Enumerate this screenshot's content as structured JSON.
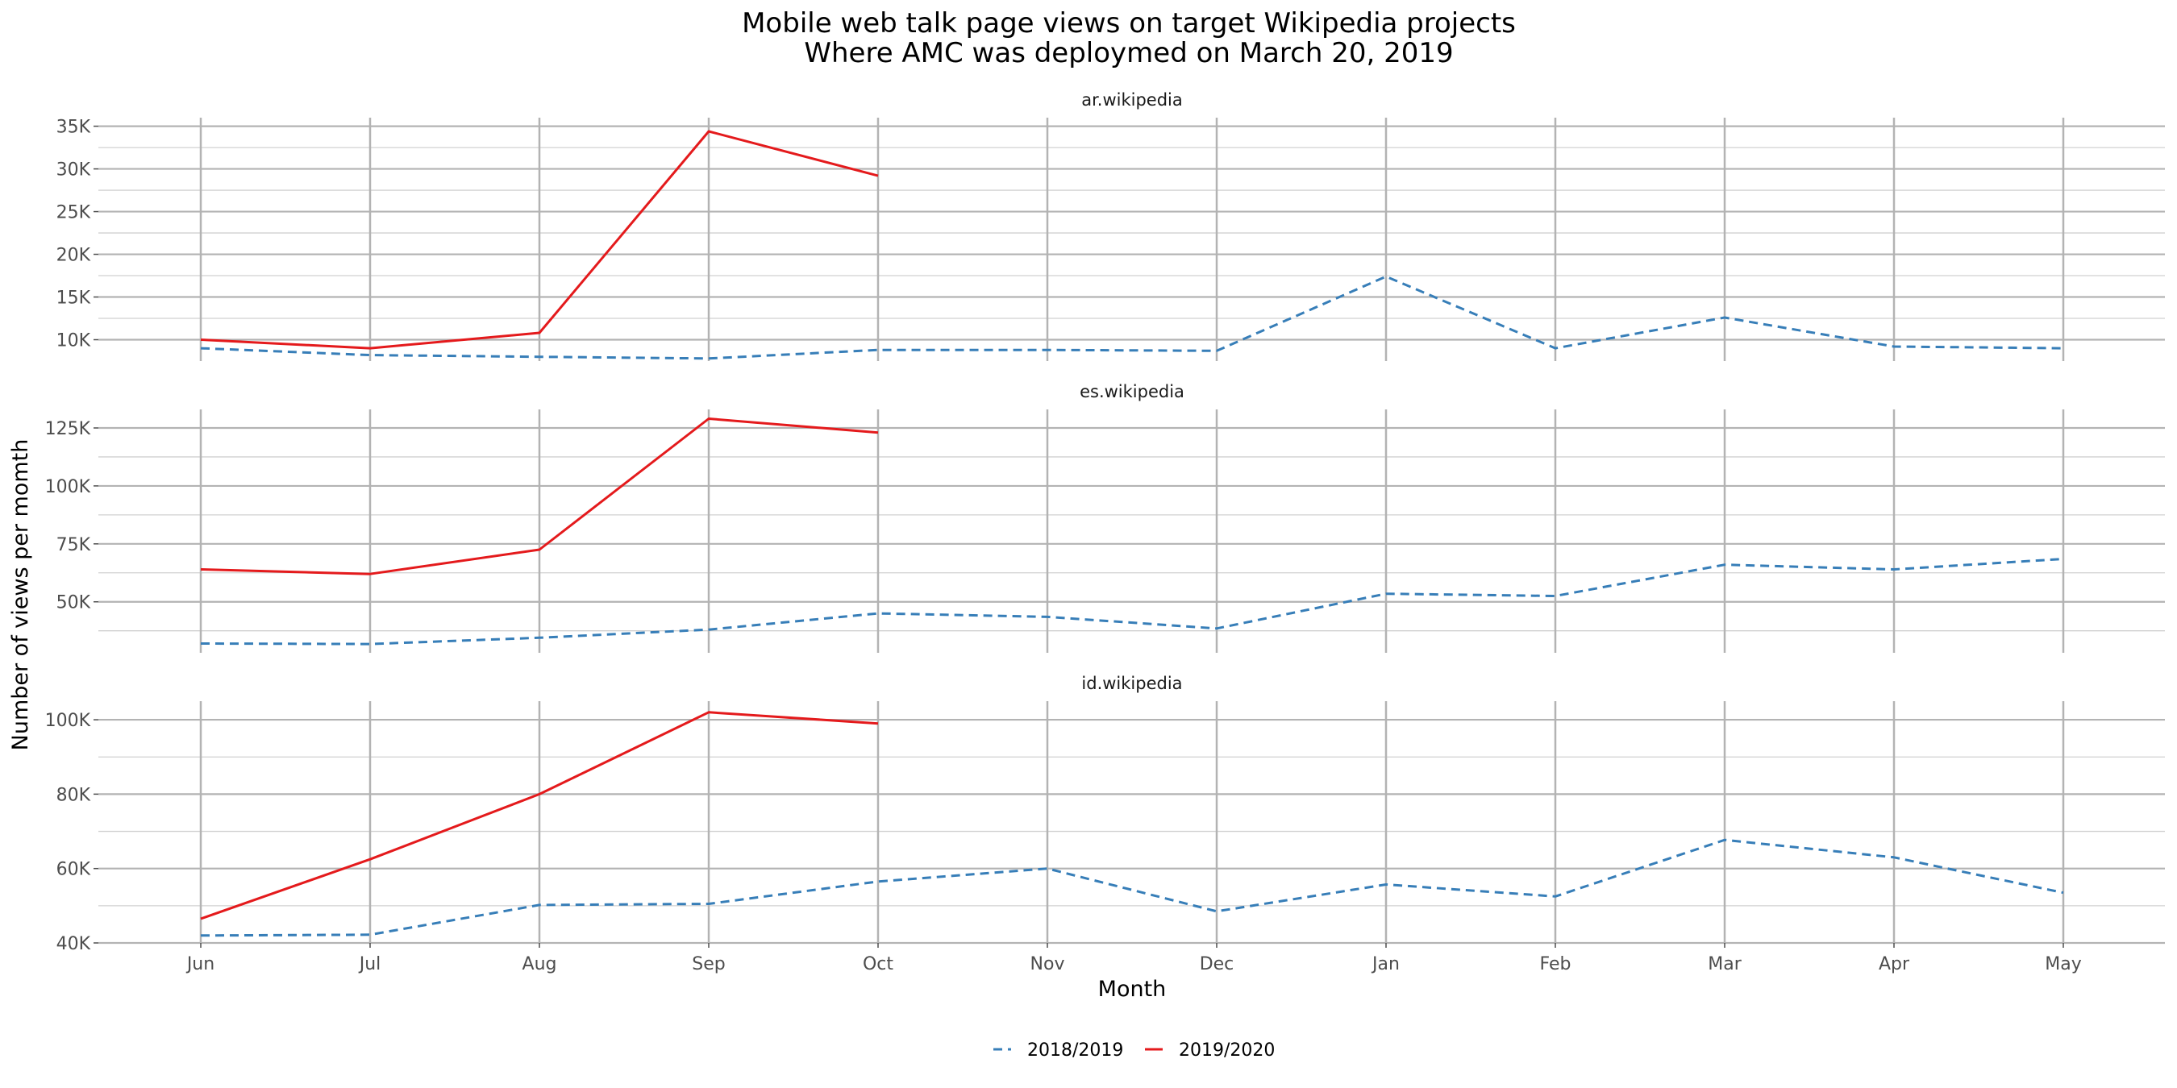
{
  "chart_data": {
    "type": "line",
    "title": "Mobile web talk page views on target Wikipedia projects",
    "subtitle": "Where AMC was deploymed on March 20, 2019",
    "xlabel": "Month",
    "ylabel": "Number of views per momth",
    "categories": [
      "Jun",
      "Jul",
      "Aug",
      "Sep",
      "Oct",
      "Nov",
      "Dec",
      "Jan",
      "Feb",
      "Mar",
      "Apr",
      "May"
    ],
    "legend_position": "bottom",
    "grid": true,
    "colors": {
      "2018/2019": "#377eb8",
      "2019/2020": "#e41a1c"
    },
    "legend": [
      "2018/2019",
      "2019/2020"
    ],
    "panels": [
      {
        "title": "ar.wikipedia",
        "ylim": [
          7500,
          36000
        ],
        "ticks": [
          10000,
          15000,
          20000,
          25000,
          30000,
          35000
        ],
        "tick_labels": [
          "10K",
          "15K",
          "20K",
          "25K",
          "30K",
          "35K"
        ],
        "series": [
          {
            "name": "2018/2019",
            "values": [
              9000,
              8200,
              8000,
              7800,
              8800,
              8800,
              8700,
              17400,
              9000,
              12600,
              9200,
              9000
            ]
          },
          {
            "name": "2019/2020",
            "values": [
              10000,
              9000,
              10800,
              34400,
              29200,
              null,
              null,
              null,
              null,
              null,
              null,
              null
            ]
          }
        ]
      },
      {
        "title": "es.wikipedia",
        "ylim": [
          28000,
          133000
        ],
        "ticks": [
          50000,
          75000,
          100000,
          125000
        ],
        "tick_labels": [
          "50K",
          "75K",
          "100K",
          "125K"
        ],
        "series": [
          {
            "name": "2018/2019",
            "values": [
              32000,
              31800,
              34500,
              38000,
              45000,
              43500,
              38500,
              53500,
              52500,
              66000,
              64000,
              68500
            ]
          },
          {
            "name": "2019/2020",
            "values": [
              64000,
              62000,
              72500,
              129000,
              123000,
              null,
              null,
              null,
              null,
              null,
              null,
              null
            ]
          }
        ]
      },
      {
        "title": "id.wikipedia",
        "ylim": [
          40000,
          105000
        ],
        "ticks": [
          40000,
          60000,
          80000,
          100000
        ],
        "tick_labels": [
          "40K",
          "60K",
          "80K",
          "100K"
        ],
        "series": [
          {
            "name": "2018/2019",
            "values": [
              42000,
              42200,
              50200,
              50500,
              56500,
              60000,
              48500,
              55700,
              52500,
              67700,
              63000,
              53500
            ]
          },
          {
            "name": "2019/2020",
            "values": [
              46500,
              62500,
              80000,
              102000,
              99000,
              null,
              null,
              null,
              null,
              null,
              null,
              null
            ]
          }
        ]
      }
    ]
  }
}
